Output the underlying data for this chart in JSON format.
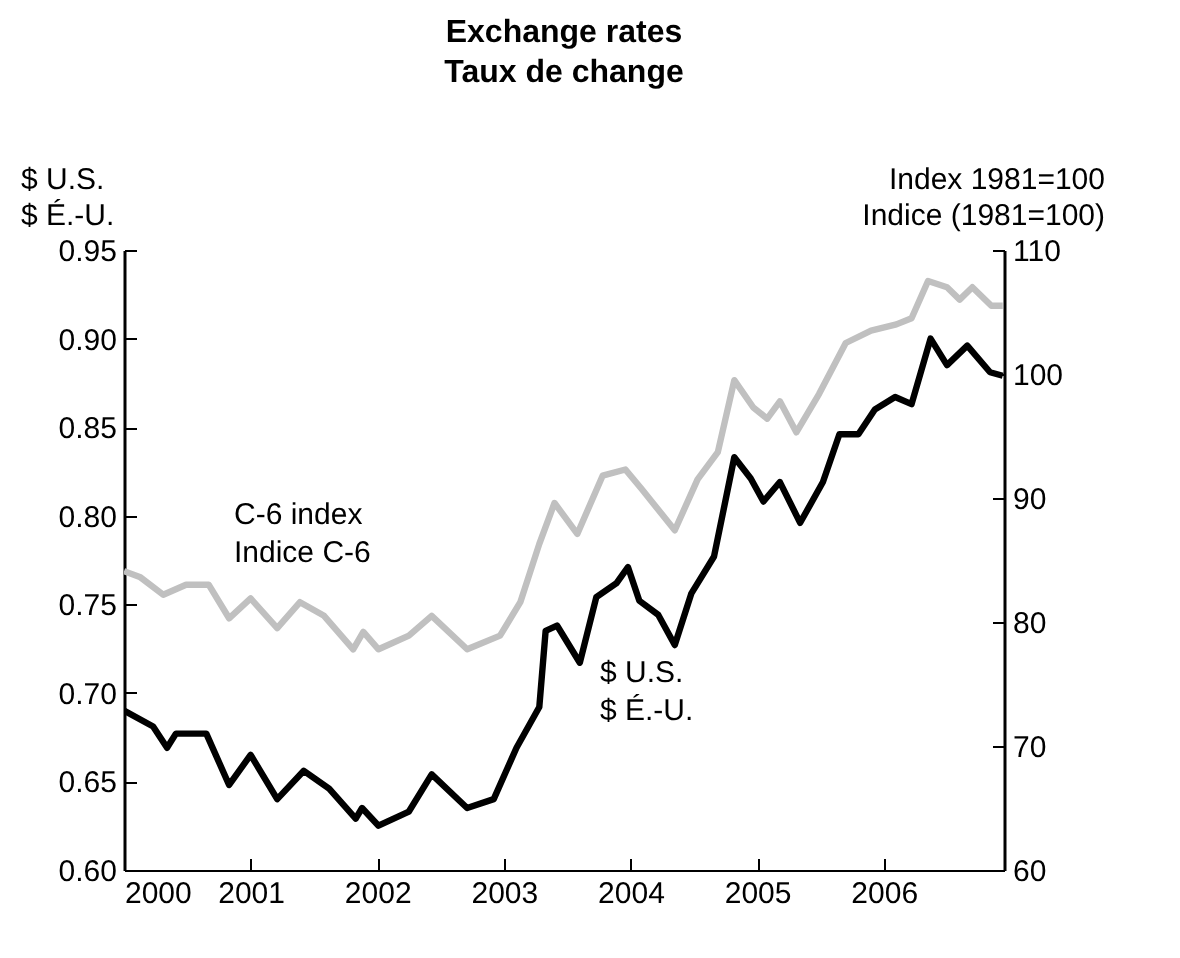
{
  "chart_data": {
    "type": "line",
    "title": "Exchange rates\nTaux de change",
    "ylabel": "$ U.S.\n$ É.-U.",
    "y2label": "Index 1981=100\nIndice (1981=100)",
    "xlim": [
      2000,
      2006.95
    ],
    "xticks": [
      2000,
      2001,
      2002,
      2003,
      2004,
      2005,
      2006
    ],
    "ylim": [
      0.6,
      0.95
    ],
    "yticks": [
      {
        "value": 0.6,
        "label": "0.60"
      },
      {
        "value": 0.65,
        "label": "0.65"
      },
      {
        "value": 0.7,
        "label": "0.70"
      },
      {
        "value": 0.75,
        "label": "0.75"
      },
      {
        "value": 0.8,
        "label": "0.80"
      },
      {
        "value": 0.85,
        "label": "0.85"
      },
      {
        "value": 0.9,
        "label": "0.90"
      },
      {
        "value": 0.95,
        "label": "0.95"
      }
    ],
    "y2lim": [
      60,
      110
    ],
    "y2ticks": [
      60,
      70,
      80,
      90,
      100,
      110
    ],
    "grid": false,
    "line_style": "solid",
    "series": [
      {
        "name": "C-6 index\nIndice C-6",
        "color": "#c0c0c0",
        "axis": "y2",
        "x": [
          2000.0,
          2000.13,
          2000.31,
          2000.49,
          2000.67,
          2000.83,
          2001.0,
          2001.21,
          2001.39,
          2001.58,
          2001.81,
          2001.89,
          2002.01,
          2002.25,
          2002.43,
          2002.71,
          2002.97,
          2003.13,
          2003.28,
          2003.4,
          2003.58,
          2003.78,
          2003.96,
          2004.09,
          2004.35,
          2004.53,
          2004.69,
          2004.82,
          2004.97,
          2005.08,
          2005.18,
          2005.31,
          2005.49,
          2005.7,
          2005.9,
          2006.1,
          2006.22,
          2006.35,
          2006.5,
          2006.6,
          2006.7,
          2006.85,
          2006.94
        ],
        "values": [
          84.1,
          83.6,
          82.2,
          83.0,
          83.0,
          80.3,
          81.9,
          79.5,
          81.6,
          80.5,
          77.8,
          79.2,
          77.8,
          78.9,
          80.5,
          77.8,
          78.9,
          81.6,
          86.3,
          89.6,
          87.1,
          91.8,
          92.3,
          90.7,
          87.4,
          91.5,
          93.7,
          99.5,
          97.3,
          96.4,
          97.8,
          95.3,
          98.4,
          102.5,
          103.5,
          104,
          104.5,
          107.5,
          107,
          106,
          107,
          105.5,
          105.5
        ]
      },
      {
        "name": "$ U.S.\n$ É.-U.",
        "color": "#000000",
        "x": [
          2000.0,
          2000.23,
          2000.34,
          2000.41,
          2000.65,
          2000.83,
          2001.0,
          2001.21,
          2001.42,
          2001.62,
          2001.83,
          2001.88,
          2002.01,
          2002.25,
          2002.43,
          2002.71,
          2002.92,
          2003.1,
          2003.28,
          2003.33,
          2003.42,
          2003.6,
          2003.73,
          2003.89,
          2003.98,
          2004.07,
          2004.22,
          2004.35,
          2004.48,
          2004.66,
          2004.82,
          2004.95,
          2005.05,
          2005.18,
          2005.34,
          2005.52,
          2005.65,
          2005.8,
          2005.93,
          2006.09,
          2006.22,
          2006.37,
          2006.5,
          2006.66,
          2006.84,
          2006.94
        ],
        "values": [
          0.69,
          0.681,
          0.669,
          0.677,
          0.677,
          0.648,
          0.665,
          0.64,
          0.656,
          0.646,
          0.629,
          0.635,
          0.625,
          0.633,
          0.654,
          0.635,
          0.64,
          0.669,
          0.692,
          0.735,
          0.738,
          0.717,
          0.754,
          0.762,
          0.771,
          0.752,
          0.744,
          0.727,
          0.756,
          0.777,
          0.833,
          0.821,
          0.808,
          0.819,
          0.796,
          0.819,
          0.846,
          0.846,
          0.86,
          0.867,
          0.863,
          0.9,
          0.885,
          0.896,
          0.881,
          0.879
        ]
      }
    ]
  }
}
